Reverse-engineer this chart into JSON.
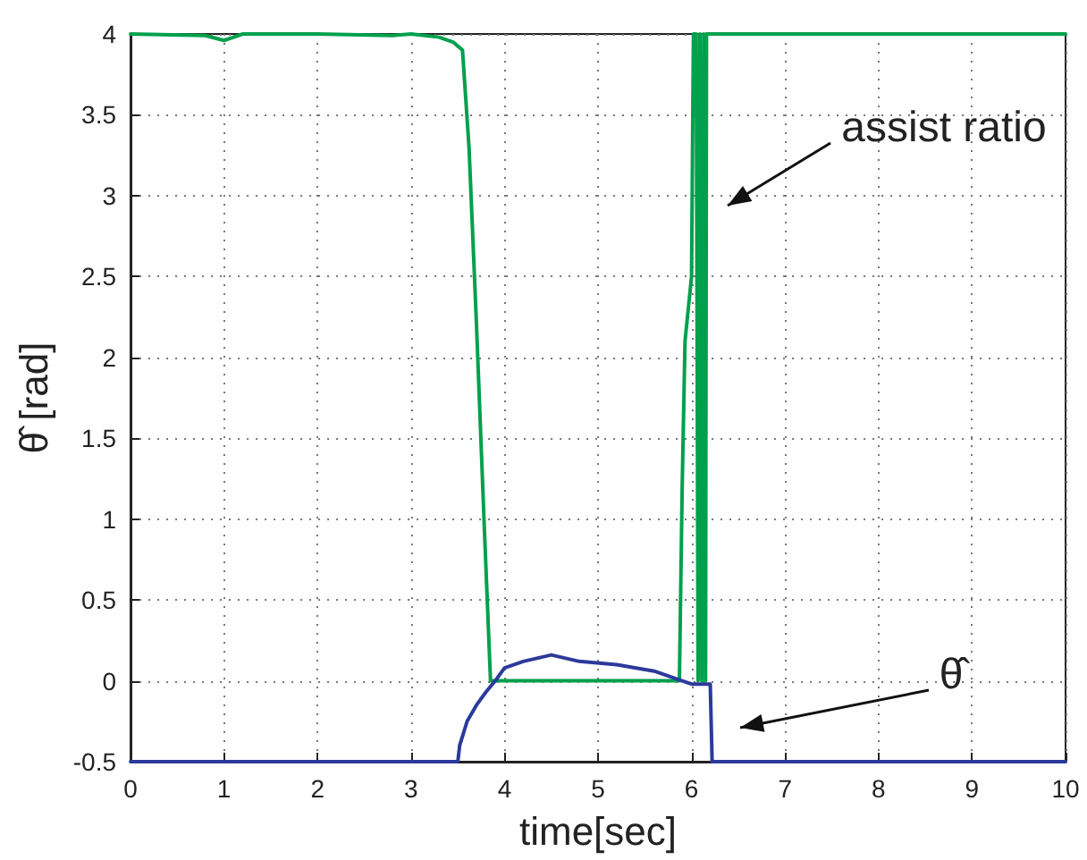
{
  "chart_data": {
    "type": "line",
    "xlabel": "time[sec]",
    "ylabel": "θ̂ [rad]",
    "xlim": [
      0,
      10
    ],
    "xticks": [
      0,
      1,
      2,
      3,
      4,
      5,
      6,
      7,
      8,
      9,
      10
    ],
    "ylim": [
      -0.5,
      4
    ],
    "yticks": [
      -0.5,
      0,
      0.5,
      1,
      1.5,
      2,
      2.5,
      3,
      3.5,
      4
    ],
    "grid": true,
    "line_style": "solid",
    "marker": "none",
    "series": [
      {
        "color": "#00a04c",
        "x": [
          0,
          0.8,
          1,
          1.2,
          2,
          2.8,
          3,
          3.3,
          3.45,
          3.55,
          3.62,
          3.7,
          3.78,
          3.85,
          5.87,
          5.9,
          5.93,
          6.0,
          6.02,
          6.05,
          6.07,
          6.09,
          6.11,
          6.13,
          6.15,
          6.16,
          10
        ],
        "values": [
          4,
          3.99,
          3.96,
          4,
          4,
          3.99,
          4,
          3.98,
          3.95,
          3.9,
          3.3,
          2.2,
          1,
          0,
          0,
          1.2,
          2.1,
          2.5,
          4,
          4,
          0,
          4,
          0,
          4,
          0,
          4,
          4
        ]
      },
      {
        "color": "#2b3a9b",
        "x": [
          0,
          3.5,
          3.52,
          3.6,
          3.7,
          3.8,
          3.9,
          4.0,
          4.2,
          4.5,
          4.8,
          5.2,
          5.6,
          5.9,
          6.0,
          6.2,
          6.22,
          10
        ],
        "values": [
          -0.5,
          -0.5,
          -0.4,
          -0.25,
          -0.15,
          -0.07,
          0,
          0.08,
          0.12,
          0.16,
          0.12,
          0.1,
          0.06,
          0,
          -0.02,
          -0.02,
          -0.5,
          -0.5
        ]
      }
    ],
    "annotations": [
      "assist ratio",
      "θ̂"
    ]
  }
}
